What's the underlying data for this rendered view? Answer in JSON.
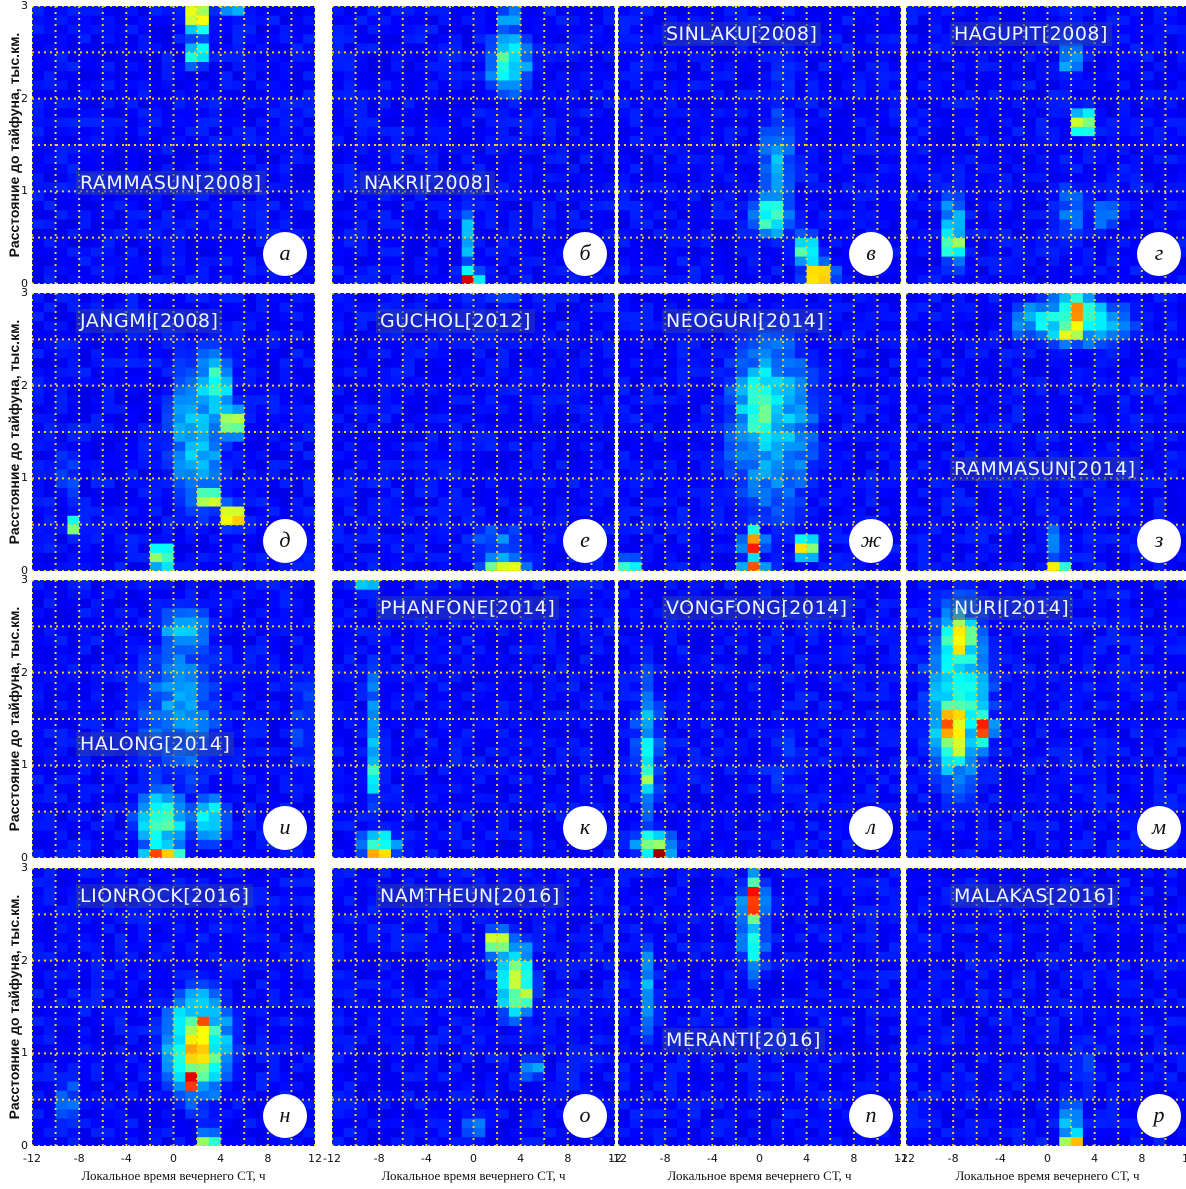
{
  "figure": {
    "ylabel": "Расстояние до тайфуна, тыс.км.",
    "xlabel": "Локальное время вечернего СТ, ч",
    "xticks": [
      "-12",
      "-8",
      "-4",
      "0",
      "4",
      "8",
      "12"
    ],
    "yticks": [
      "0",
      "1",
      "2",
      "3"
    ]
  },
  "chart_data": {
    "type": "heatmap",
    "xlabel": "Локальное время вечернего СТ, ч",
    "ylabel": "Расстояние до тайфуна, тыс.км.",
    "xlim": [
      -12,
      12
    ],
    "ylim": [
      0,
      3
    ],
    "grid": true,
    "colormap": "jet",
    "panels": [
      {
        "name": "RAMMASUN[2008]",
        "letter": "а",
        "hotspots": [
          {
            "x": 2,
            "y": 2.9,
            "w": 1,
            "h": 0.4,
            "v": 0.85
          },
          {
            "x": 2,
            "y": 2.5,
            "w": 1,
            "h": 0.3,
            "v": 0.55
          },
          {
            "x": 5,
            "y": 2.95,
            "w": 3,
            "h": 0.15,
            "v": 0.3
          }
        ]
      },
      {
        "name": "NAKRI[2008]",
        "letter": "б",
        "hotspots": [
          {
            "x": 3,
            "y": 2.4,
            "w": 4,
            "h": 0.8,
            "v": 0.45
          },
          {
            "x": 3,
            "y": 2.85,
            "w": 2,
            "h": 0.3,
            "v": 0.35
          },
          {
            "x": -0.3,
            "y": 0.5,
            "w": 1,
            "h": 0.9,
            "v": 0.35
          },
          {
            "x": -0.3,
            "y": 0.05,
            "w": 1,
            "h": 0.15,
            "v": 0.95
          }
        ]
      },
      {
        "name": "SINLAKU[2008]",
        "letter": "в",
        "hotspots": [
          {
            "x": 1.5,
            "y": 1.3,
            "w": 3,
            "h": 1.8,
            "v": 0.3
          },
          {
            "x": 1,
            "y": 0.75,
            "w": 3,
            "h": 0.5,
            "v": 0.5
          },
          {
            "x": 4,
            "y": 0.35,
            "w": 2,
            "h": 0.4,
            "v": 0.5
          },
          {
            "x": 5,
            "y": 0.1,
            "w": 2,
            "h": 0.2,
            "v": 0.8
          },
          {
            "x": 2,
            "y": 2.2,
            "w": 2,
            "h": 0.8,
            "v": 0.2
          }
        ]
      },
      {
        "name": "HAGUPIT[2008]",
        "letter": "г",
        "hotspots": [
          {
            "x": -8,
            "y": 0.6,
            "w": 1,
            "h": 1.4,
            "v": 0.4
          },
          {
            "x": -8,
            "y": 0.45,
            "w": 1,
            "h": 0.3,
            "v": 0.7
          },
          {
            "x": 2,
            "y": 2.45,
            "w": 2,
            "h": 0.5,
            "v": 0.35
          },
          {
            "x": 3,
            "y": 1.75,
            "w": 1,
            "h": 0.2,
            "v": 0.9
          },
          {
            "x": 2,
            "y": 0.8,
            "w": 4,
            "h": 1.0,
            "v": 0.25
          },
          {
            "x": 5,
            "y": 0.75,
            "w": 1,
            "h": 0.3,
            "v": 0.4
          }
        ]
      },
      {
        "name": "JANGMI[2008]",
        "letter": "д",
        "hotspots": [
          {
            "x": 2,
            "y": 1.5,
            "w": 6,
            "h": 2.4,
            "v": 0.35
          },
          {
            "x": 3.5,
            "y": 2.0,
            "w": 3,
            "h": 1.0,
            "v": 0.45
          },
          {
            "x": 5,
            "y": 1.6,
            "w": 1,
            "h": 0.3,
            "v": 0.85
          },
          {
            "x": 3,
            "y": 0.8,
            "w": 1,
            "h": 0.2,
            "v": 0.9
          },
          {
            "x": 5,
            "y": 0.6,
            "w": 1,
            "h": 0.2,
            "v": 0.95
          },
          {
            "x": -9,
            "y": 1.0,
            "w": 1,
            "h": 1.2,
            "v": 0.25
          },
          {
            "x": -8.5,
            "y": 0.5,
            "w": 1,
            "h": 0.2,
            "v": 0.6
          },
          {
            "x": -1,
            "y": 0.15,
            "w": 1,
            "h": 0.3,
            "v": 0.65
          }
        ]
      },
      {
        "name": "GUCHOL[2012]",
        "letter": "е",
        "hotspots": [
          {
            "x": 2,
            "y": 0.35,
            "w": 8,
            "h": 0.4,
            "v": 0.25
          },
          {
            "x": 2.5,
            "y": 0.05,
            "w": 3,
            "h": 0.15,
            "v": 0.75
          },
          {
            "x": 2,
            "y": 2.95,
            "w": 10,
            "h": 0.15,
            "v": 0.2
          }
        ]
      },
      {
        "name": "NEOGURI[2014]",
        "letter": "ж",
        "hotspots": [
          {
            "x": 1,
            "y": 1.6,
            "w": 10,
            "h": 2.8,
            "v": 0.35
          },
          {
            "x": 0,
            "y": 1.8,
            "w": 4,
            "h": 1.2,
            "v": 0.5
          },
          {
            "x": -0.5,
            "y": 0.3,
            "w": 1,
            "h": 0.3,
            "v": 0.9
          },
          {
            "x": 4,
            "y": 0.25,
            "w": 1,
            "h": 0.2,
            "v": 0.85
          },
          {
            "x": -0.5,
            "y": 0.05,
            "w": 1,
            "h": 0.15,
            "v": 0.95
          },
          {
            "x": -11,
            "y": 0.05,
            "w": 1,
            "h": 0.15,
            "v": 0.6
          }
        ]
      },
      {
        "name": "RAMMASUN[2014]",
        "letter": "з",
        "hotspots": [
          {
            "x": 2,
            "y": 2.7,
            "w": 12,
            "h": 0.6,
            "v": 0.45
          },
          {
            "x": 2.5,
            "y": 2.8,
            "w": 3,
            "h": 0.4,
            "v": 0.75
          },
          {
            "x": 2,
            "y": 2.6,
            "w": 1,
            "h": 0.2,
            "v": 0.95
          },
          {
            "x": 0.8,
            "y": 0.3,
            "w": 1,
            "h": 0.6,
            "v": 0.3
          },
          {
            "x": 0.8,
            "y": 0.05,
            "w": 1,
            "h": 0.1,
            "v": 0.7
          }
        ]
      },
      {
        "name": "HALONG[2014]",
        "letter": "и",
        "hotspots": [
          {
            "x": 0.5,
            "y": 1.6,
            "w": 10,
            "h": 2.8,
            "v": 0.28
          },
          {
            "x": 1,
            "y": 2.5,
            "w": 6,
            "h": 0.6,
            "v": 0.35
          },
          {
            "x": -1,
            "y": 0.4,
            "w": 5,
            "h": 0.8,
            "v": 0.45
          },
          {
            "x": 3,
            "y": 0.4,
            "w": 3,
            "h": 0.6,
            "v": 0.45
          },
          {
            "x": -1,
            "y": 0.05,
            "w": 3,
            "h": 0.15,
            "v": 0.8
          },
          {
            "x": 11,
            "y": 1.5,
            "w": 1,
            "h": 2.4,
            "v": 0.25
          }
        ]
      },
      {
        "name": "PHANFONE[2014]",
        "letter": "к",
        "hotspots": [
          {
            "x": -8.5,
            "y": 1.3,
            "w": 1.5,
            "h": 2.4,
            "v": 0.3
          },
          {
            "x": -8.5,
            "y": 0.9,
            "w": 1,
            "h": 0.4,
            "v": 0.5
          },
          {
            "x": -8,
            "y": 0.15,
            "w": 3,
            "h": 0.3,
            "v": 0.5
          },
          {
            "x": -8,
            "y": 0.05,
            "w": 1,
            "h": 0.15,
            "v": 0.95
          },
          {
            "x": -9,
            "y": 2.95,
            "w": 1,
            "h": 0.15,
            "v": 0.5
          }
        ]
      },
      {
        "name": "VONGFONG[2014]",
        "letter": "л",
        "hotspots": [
          {
            "x": -9.5,
            "y": 1.2,
            "w": 2,
            "h": 2.2,
            "v": 0.35
          },
          {
            "x": -9.5,
            "y": 0.9,
            "w": 1,
            "h": 0.4,
            "v": 0.55
          },
          {
            "x": -9,
            "y": 0.15,
            "w": 3,
            "h": 0.3,
            "v": 0.55
          },
          {
            "x": -8.5,
            "y": 0.05,
            "w": 1,
            "h": 0.15,
            "v": 0.95
          },
          {
            "x": 2,
            "y": 1.0,
            "w": 8,
            "h": 2.0,
            "v": 0.18
          }
        ]
      },
      {
        "name": "NURI[2014]",
        "letter": "м",
        "hotspots": [
          {
            "x": -7.5,
            "y": 1.8,
            "w": 6,
            "h": 2.6,
            "v": 0.45
          },
          {
            "x": -8,
            "y": 1.4,
            "w": 3,
            "h": 1.0,
            "v": 0.75
          },
          {
            "x": -8.5,
            "y": 1.4,
            "w": 1,
            "h": 0.3,
            "v": 0.95
          },
          {
            "x": -5.5,
            "y": 1.4,
            "w": 1,
            "h": 0.3,
            "v": 0.95
          },
          {
            "x": -7.5,
            "y": 2.4,
            "w": 2,
            "h": 0.6,
            "v": 0.8
          }
        ]
      },
      {
        "name": "LIONROCK[2016]",
        "letter": "н",
        "hotspots": [
          {
            "x": 2,
            "y": 1.1,
            "w": 6,
            "h": 1.4,
            "v": 0.55
          },
          {
            "x": 2,
            "y": 1.05,
            "w": 4,
            "h": 0.9,
            "v": 0.72
          },
          {
            "x": 1.5,
            "y": 0.7,
            "w": 1,
            "h": 0.2,
            "v": 0.95
          },
          {
            "x": 2.5,
            "y": 1.3,
            "w": 1,
            "h": 0.2,
            "v": 0.9
          },
          {
            "x": -9,
            "y": 0.5,
            "w": 1,
            "h": 1.0,
            "v": 0.3
          },
          {
            "x": 3,
            "y": 0.05,
            "w": 1,
            "h": 0.15,
            "v": 0.65
          }
        ]
      },
      {
        "name": "NAMTHEUN[2016]",
        "letter": "о",
        "hotspots": [
          {
            "x": 3.5,
            "y": 1.8,
            "w": 3,
            "h": 0.9,
            "v": 0.6
          },
          {
            "x": 2,
            "y": 2.2,
            "w": 1,
            "h": 0.2,
            "v": 0.95
          },
          {
            "x": 4,
            "y": 1.6,
            "w": 1,
            "h": 0.2,
            "v": 0.8
          },
          {
            "x": 5,
            "y": 0.85,
            "w": 1,
            "h": 0.2,
            "v": 0.45
          },
          {
            "x": 0,
            "y": 0.2,
            "w": 1,
            "h": 0.2,
            "v": 0.35
          }
        ]
      },
      {
        "name": "MERANTI[2016]",
        "letter": "п",
        "hotspots": [
          {
            "x": -0.5,
            "y": 2.3,
            "w": 2,
            "h": 1.4,
            "v": 0.4
          },
          {
            "x": -0.5,
            "y": 2.65,
            "w": 1,
            "h": 0.5,
            "v": 0.92
          },
          {
            "x": -9.5,
            "y": 1.7,
            "w": 1.5,
            "h": 1.6,
            "v": 0.3
          },
          {
            "x": -6,
            "y": 0.6,
            "w": 1,
            "h": 1.2,
            "v": 0.18
          }
        ]
      },
      {
        "name": "MALAKAS[2016]",
        "letter": "р",
        "hotspots": [
          {
            "x": 2,
            "y": 0.25,
            "w": 1,
            "h": 0.5,
            "v": 0.45
          },
          {
            "x": 2,
            "y": 0.05,
            "w": 1,
            "h": 0.15,
            "v": 0.95
          },
          {
            "x": 3,
            "y": 0.9,
            "w": 2,
            "h": 1.2,
            "v": 0.2
          }
        ]
      }
    ]
  }
}
